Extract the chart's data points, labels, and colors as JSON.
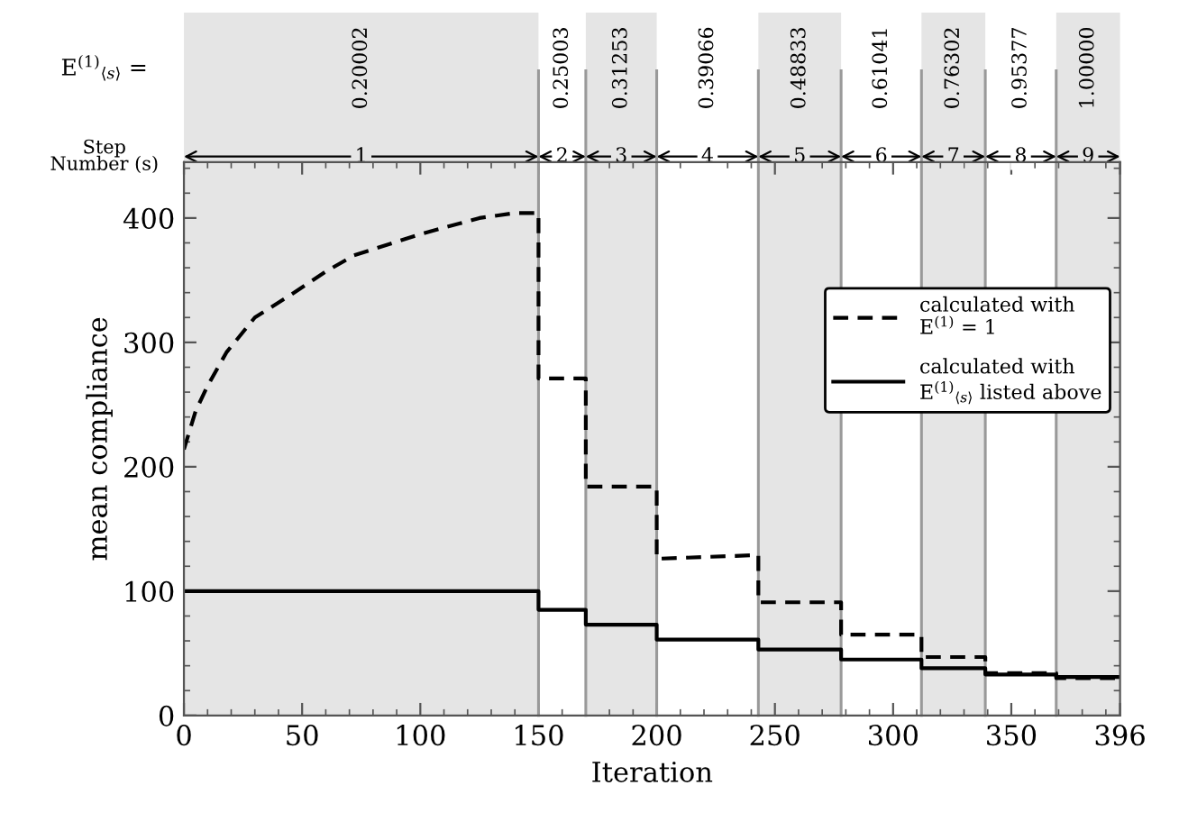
{
  "chart_data": {
    "type": "line",
    "xlabel": "Iteration",
    "ylabel": "mean compliance",
    "xlim": [
      0,
      396
    ],
    "xticks": [
      0,
      50,
      100,
      150,
      200,
      250,
      300,
      350,
      396
    ],
    "ylim": [
      0,
      445
    ],
    "yticks": [
      0,
      100,
      200,
      300,
      400
    ],
    "grid": false,
    "legend": "right",
    "marker": "none",
    "series": [
      {
        "name": "calculated with\nE$^{(1)}$ = 1",
        "color": "#000000",
        "line_style": "dashed",
        "x": [
          0,
          5,
          10,
          18,
          30,
          45,
          60,
          72,
          100,
          125,
          140,
          150,
          150,
          170,
          170,
          200,
          200,
          243,
          243,
          278,
          278,
          312,
          312,
          339,
          339,
          369,
          369,
          396
        ],
        "values": [
          214,
          245,
          265,
          292,
          320,
          338,
          357,
          370,
          387,
          400,
          404,
          404,
          271,
          271,
          184,
          184,
          126,
          129,
          91,
          91,
          65,
          65,
          47,
          47,
          34,
          34,
          30,
          30
        ]
      },
      {
        "name": "calculated with\nE$^{(1)}$$_{⟨s⟩}$ listed above",
        "color": "#000000",
        "line_style": "solid",
        "x": [
          0,
          150,
          150,
          170,
          170,
          200,
          200,
          243,
          243,
          278,
          278,
          312,
          312,
          339,
          339,
          369,
          369,
          396
        ],
        "values": [
          100,
          100,
          85,
          85,
          73,
          73,
          61,
          61,
          53,
          53,
          45,
          45,
          38,
          38,
          33,
          33,
          31,
          31
        ]
      }
    ],
    "bands": [
      {
        "axis": "x",
        "from": 0,
        "to": 150,
        "color": "#e5e5e5"
      },
      {
        "axis": "x",
        "from": 170,
        "to": 200,
        "color": "#e5e5e5"
      },
      {
        "axis": "x",
        "from": 243,
        "to": 278,
        "color": "#e5e5e5"
      },
      {
        "axis": "x",
        "from": 312,
        "to": 339,
        "color": "#e5e5e5"
      },
      {
        "axis": "x",
        "from": 369,
        "to": 396,
        "color": "#e5e5e5"
      }
    ],
    "ref_lines": [
      {
        "axis": "x",
        "value": 150,
        "color": "#999999"
      },
      {
        "axis": "x",
        "value": 170,
        "color": "#999999"
      },
      {
        "axis": "x",
        "value": 200,
        "color": "#999999"
      },
      {
        "axis": "x",
        "value": 243,
        "color": "#999999"
      },
      {
        "axis": "x",
        "value": 278,
        "color": "#999999"
      },
      {
        "axis": "x",
        "value": 312,
        "color": "#999999"
      },
      {
        "axis": "x",
        "value": 339,
        "color": "#999999"
      },
      {
        "axis": "x",
        "value": 369,
        "color": "#999999"
      }
    ],
    "annotations": [
      "E$^{(1)}$$_{⟨s⟩}$ =",
      "Step\nNumber (s)",
      "0.20002",
      "0.25003",
      "0.31253",
      "0.39066",
      "0.48833",
      "0.61041",
      "0.76302",
      "0.95377",
      "1.00000",
      "1",
      "2",
      "3",
      "4",
      "5",
      "6",
      "7",
      "8",
      "9"
    ]
  }
}
